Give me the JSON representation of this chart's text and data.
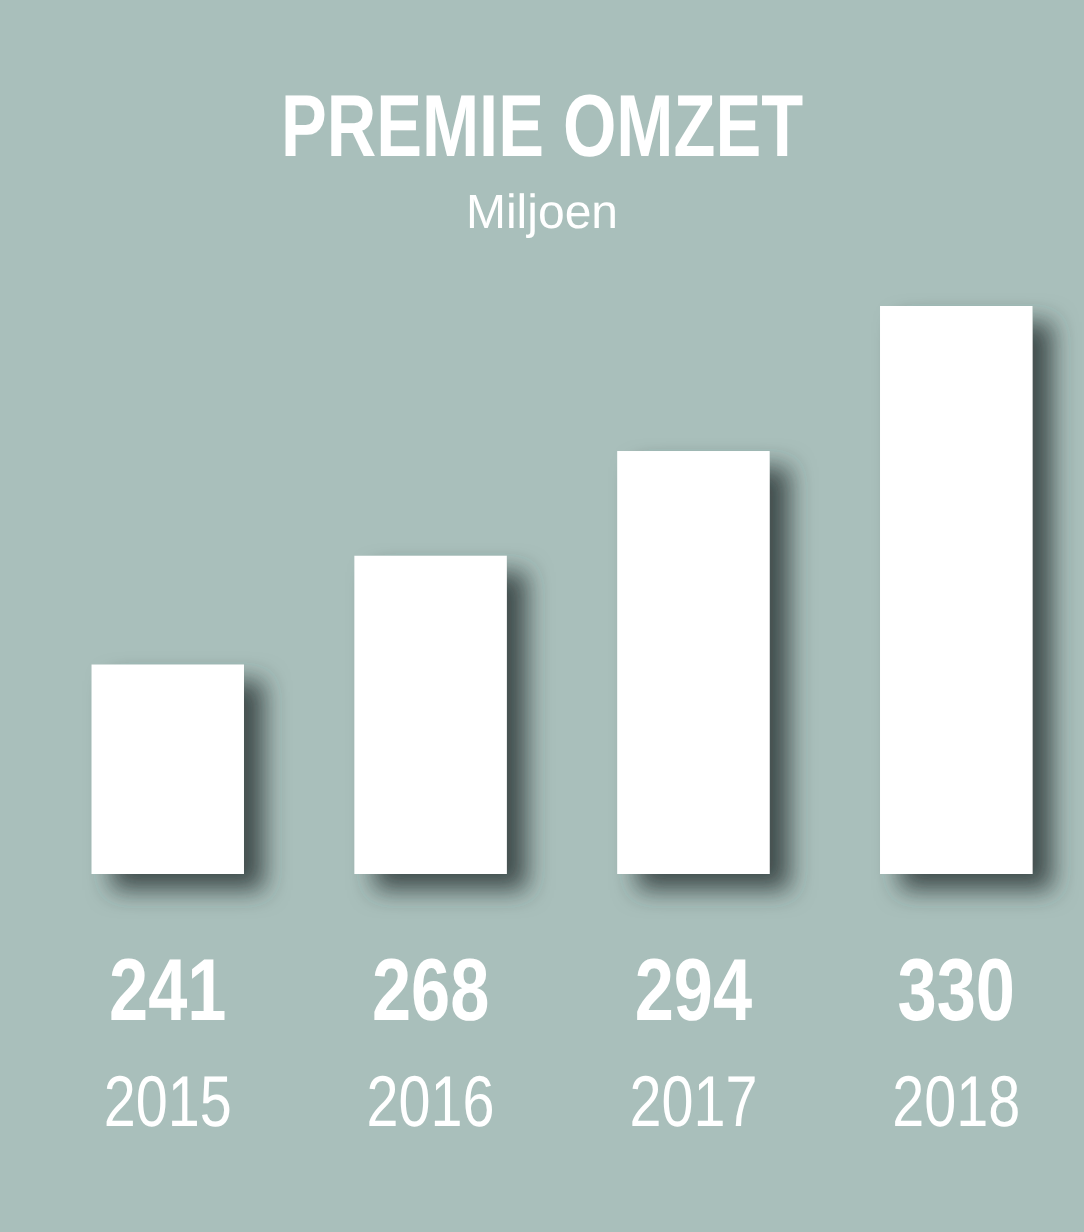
{
  "chart_data": {
    "type": "bar",
    "title": "PREMIE OMZET",
    "subtitle": "Miljoen",
    "categories": [
      "2015",
      "2016",
      "2017",
      "2018"
    ],
    "values": [
      241,
      268,
      294,
      330
    ],
    "color": "#ffffff",
    "ylim": [
      189,
      330
    ],
    "data_labels": true,
    "tick_labels": "x"
  }
}
